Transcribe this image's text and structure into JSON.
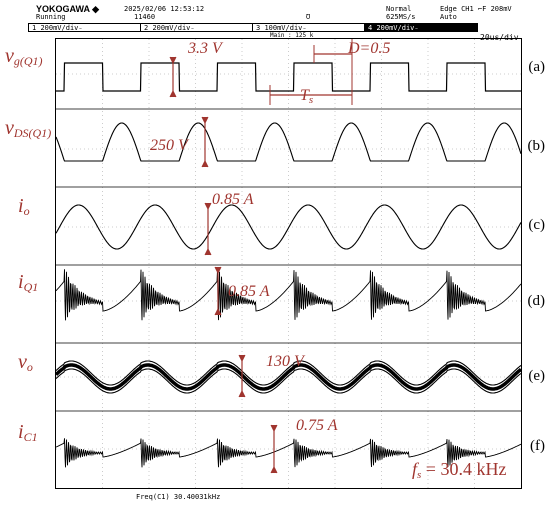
{
  "header": {
    "brand": "YOKOGAWA ◆",
    "date": "2025/02/06 12:53:12",
    "status": "Running",
    "count": "11460",
    "trigger_marker": "Ʊ",
    "mode": "Normal",
    "sample_rate": "625MS/s",
    "edge": "Edge CH1 ⌐F 208mV",
    "trig_mode": "Auto",
    "main_rec": "Main : 125 k",
    "timebase": "20us/div",
    "channels": [
      {
        "id": "1",
        "text": "200mV/div₋"
      },
      {
        "id": "2",
        "text": "200mV/div₋"
      },
      {
        "id": "3",
        "text": "100mV/div₋"
      },
      {
        "id": "4",
        "text": "200mV/div₋"
      }
    ]
  },
  "footer": {
    "freq": "Freq(C1)  30.40031kHz"
  },
  "chart_data": {
    "type": "line",
    "x_unit": "us",
    "x_range": [
      0,
      200
    ],
    "period_us": 32.9,
    "grid": true,
    "panels": [
      {
        "tag": "(a)",
        "label_main": "v",
        "label_sub": "g(Q1)",
        "amplitude_label": "3.3 V",
        "amplitude": 3.3,
        "unit": "V",
        "waveform": "square",
        "extra_labels": {
          "duty": "D=0.5",
          "period": "T"
        }
      },
      {
        "tag": "(b)",
        "label_main": "v",
        "label_sub": "DS(Q1)",
        "amplitude_label": "250 V",
        "amplitude": 250,
        "unit": "V",
        "waveform": "half-sine-pulses"
      },
      {
        "tag": "(c)",
        "label_main": "i",
        "label_sub": "o",
        "amplitude_label": "0.85 A",
        "amplitude": 0.85,
        "unit": "A",
        "waveform": "sine"
      },
      {
        "tag": "(d)",
        "label_main": "i",
        "label_sub": "Q1",
        "amplitude_label": "0.85 A",
        "amplitude": 0.85,
        "unit": "A",
        "waveform": "ringing-ramp"
      },
      {
        "tag": "(e)",
        "label_main": "v",
        "label_sub": "o",
        "amplitude_label": "130 V",
        "amplitude": 130,
        "unit": "V",
        "waveform": "sine-with-ripple"
      },
      {
        "tag": "(f)",
        "label_main": "i",
        "label_sub": "C1",
        "amplitude_label": "0.75 A",
        "amplitude": 0.75,
        "unit": "A",
        "waveform": "ringing-ramp"
      }
    ],
    "annotation": {
      "fs_label": "f",
      "fs_sub": "s",
      "fs_value": " = 30.4 kHz"
    },
    "period_sub": "s"
  },
  "style": {
    "annotation_color": "#a0352f",
    "trace_color": "#000000",
    "grid_color": "#9a9a9a"
  }
}
